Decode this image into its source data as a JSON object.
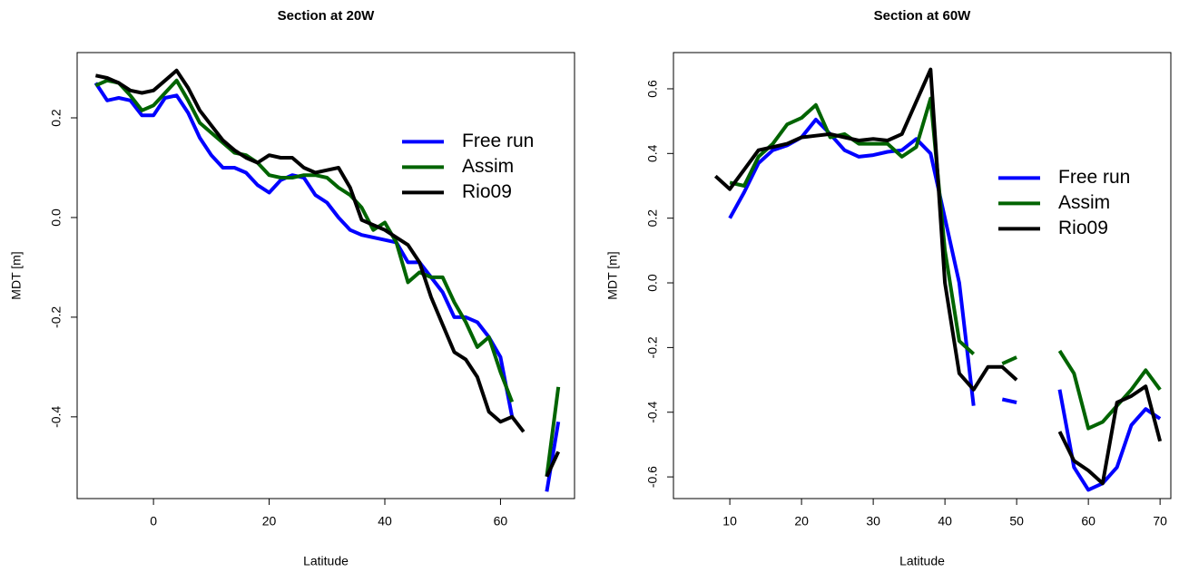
{
  "chart_data": [
    {
      "type": "line",
      "title": "Section at 20W",
      "xlabel": "Latitude",
      "ylabel": "MDT [m]",
      "x": [
        -10,
        -8,
        -6,
        -4,
        -2,
        0,
        2,
        4,
        6,
        8,
        10,
        12,
        14,
        16,
        18,
        20,
        22,
        24,
        26,
        28,
        30,
        32,
        34,
        36,
        38,
        40,
        42,
        44,
        46,
        48,
        50,
        52,
        54,
        56,
        58,
        60,
        62,
        64,
        66,
        68,
        70
      ],
      "series": [
        {
          "name": "Free run",
          "color": "#0000ff",
          "values": [
            0.27,
            0.235,
            0.24,
            0.235,
            0.205,
            0.205,
            0.24,
            0.245,
            0.21,
            0.16,
            0.125,
            0.1,
            0.1,
            0.09,
            0.065,
            0.05,
            0.075,
            0.085,
            0.08,
            0.045,
            0.03,
            0.0,
            -0.025,
            -0.035,
            -0.04,
            -0.045,
            -0.05,
            -0.09,
            -0.09,
            -0.12,
            -0.15,
            -0.2,
            -0.2,
            -0.21,
            -0.24,
            -0.28,
            -0.4,
            null,
            null,
            -0.55,
            -0.41
          ]
        },
        {
          "name": "Assim",
          "color": "#006400",
          "values": [
            0.265,
            0.275,
            0.27,
            0.245,
            0.215,
            0.225,
            0.25,
            0.275,
            0.235,
            0.19,
            0.17,
            0.15,
            0.13,
            0.125,
            0.11,
            0.085,
            0.08,
            0.08,
            0.085,
            0.085,
            0.08,
            0.06,
            0.045,
            0.02,
            -0.025,
            -0.01,
            -0.05,
            -0.13,
            -0.11,
            -0.12,
            -0.12,
            -0.17,
            -0.21,
            -0.26,
            -0.24,
            -0.31,
            -0.37,
            null,
            null,
            -0.52,
            -0.34
          ]
        },
        {
          "name": "Rio09",
          "color": "#000000",
          "values": [
            0.285,
            0.28,
            0.27,
            0.255,
            0.25,
            0.255,
            0.275,
            0.295,
            0.26,
            0.215,
            0.185,
            0.155,
            0.135,
            0.12,
            0.11,
            0.125,
            0.12,
            0.12,
            0.1,
            0.09,
            0.095,
            0.1,
            0.06,
            -0.005,
            -0.015,
            -0.025,
            -0.04,
            -0.055,
            -0.09,
            -0.16,
            -0.215,
            -0.27,
            -0.285,
            -0.32,
            -0.39,
            -0.41,
            -0.4,
            -0.43,
            null,
            -0.52,
            -0.47
          ]
        }
      ],
      "xlim": [
        -13.2,
        72.8
      ],
      "xticks": [
        0,
        20,
        40,
        60
      ],
      "ylim": [
        -0.564,
        0.331
      ],
      "yticks": [
        -0.4,
        -0.2,
        {
          "value": 0,
          "label": "0.0"
        },
        0.2
      ],
      "legend": "right"
    },
    {
      "type": "line",
      "title": "Section at 60W",
      "xlabel": "Latitude",
      "ylabel": "MDT [m]",
      "x": [
        8,
        10,
        12,
        14,
        16,
        18,
        20,
        22,
        24,
        26,
        28,
        30,
        32,
        34,
        36,
        38,
        40,
        42,
        44,
        46,
        48,
        50,
        52,
        54,
        56,
        58,
        60,
        62,
        64,
        66,
        68,
        70
      ],
      "series": [
        {
          "name": "Free run",
          "color": "#0000ff",
          "values": [
            null,
            0.2,
            0.28,
            0.37,
            0.41,
            0.425,
            0.45,
            0.505,
            0.46,
            0.41,
            0.39,
            0.395,
            0.405,
            0.41,
            0.445,
            0.4,
            0.2,
            0.0,
            -0.38,
            null,
            -0.36,
            -0.37,
            null,
            null,
            -0.33,
            -0.57,
            -0.64,
            -0.62,
            -0.57,
            -0.44,
            -0.39,
            -0.42
          ]
        },
        {
          "name": "Assim",
          "color": "#006400",
          "values": [
            null,
            0.31,
            0.3,
            0.39,
            0.43,
            0.49,
            0.51,
            0.55,
            0.45,
            0.46,
            0.43,
            0.43,
            0.43,
            0.39,
            0.42,
            0.57,
            0.1,
            -0.18,
            -0.22,
            null,
            -0.25,
            -0.23,
            null,
            null,
            -0.21,
            -0.28,
            -0.45,
            -0.43,
            -0.38,
            -0.33,
            -0.27,
            -0.33
          ]
        },
        {
          "name": "Rio09",
          "color": "#000000",
          "values": [
            0.33,
            0.29,
            0.35,
            0.41,
            0.42,
            0.43,
            0.45,
            0.455,
            0.46,
            0.45,
            0.44,
            0.445,
            0.44,
            0.46,
            0.56,
            0.66,
            0.0,
            -0.28,
            -0.33,
            -0.26,
            -0.26,
            -0.3,
            null,
            null,
            -0.46,
            -0.55,
            -0.58,
            -0.62,
            -0.37,
            -0.35,
            -0.32,
            -0.49
          ]
        }
      ],
      "xlim": [
        2.14,
        71.5
      ],
      "xticks": [
        10,
        20,
        30,
        40,
        50,
        60,
        70
      ],
      "ylim": [
        -0.667,
        0.712
      ],
      "yticks": [
        {
          "value": -0.6,
          "label": "-0.6"
        },
        -0.4,
        -0.2,
        {
          "value": 0,
          "label": "0.0"
        },
        0.2,
        0.4,
        0.6
      ],
      "legend": "right"
    }
  ]
}
